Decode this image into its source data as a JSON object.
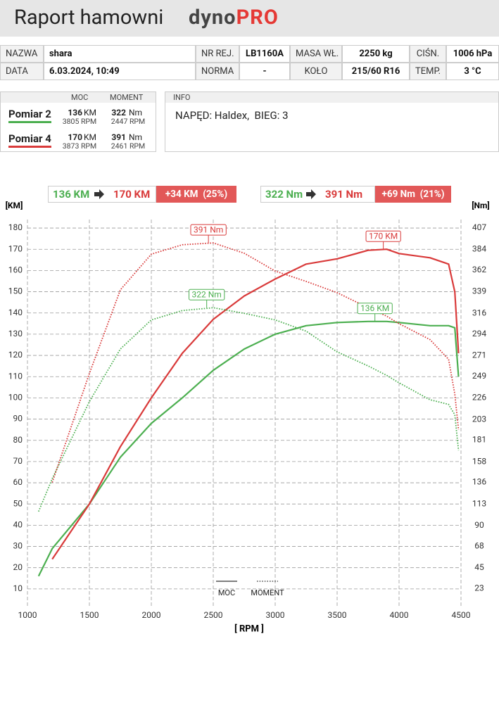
{
  "header": {
    "title": "Raport hamowni",
    "logo_left": "dyno",
    "logo_right": "PRO"
  },
  "details": {
    "rows": [
      [
        "NAZWA",
        "shara",
        "NR REJ.",
        "LB1160A",
        "MASA WŁ.",
        "2250 kg",
        "CIŚN.",
        "1006 hPa"
      ],
      [
        "DATA",
        "6.03.2024, 10:49",
        "NORMA",
        "-",
        "KOŁO",
        "215/60 R16",
        "TEMP.",
        "3 °C"
      ]
    ]
  },
  "measurements": {
    "headers": [
      "MOC",
      "MOMENT"
    ],
    "rows": [
      {
        "name": "Pomiar 2",
        "color": "#4caf50",
        "power": "136",
        "power_unit": "KM",
        "power_rpm": "3805 RPM",
        "torque": "322",
        "torque_unit": "Nm",
        "torque_rpm": "2447 RPM"
      },
      {
        "name": "Pomiar 4",
        "color": "#d93a3a",
        "power": "170",
        "power_unit": "KM",
        "power_rpm": "3873 RPM",
        "torque": "391",
        "torque_unit": "Nm",
        "torque_rpm": "2461 RPM"
      }
    ]
  },
  "info": {
    "title": "INFO",
    "text": "NAPĘD: Haldex,  BIEG: 3"
  },
  "comparison": [
    {
      "from": "136 KM",
      "to": "170 KM",
      "diff": "+34 KM  (25%)"
    },
    {
      "from": "322 Nm",
      "to": "391 Nm",
      "diff": "+69 Nm  (21%)"
    }
  ],
  "chart_data": {
    "type": "line",
    "xlabel": "[ RPM ]",
    "ylabel": "[KM]",
    "y2label": "[Nm]",
    "grid": true,
    "x": [
      1090,
      1200,
      1500,
      1750,
      2000,
      2250,
      2500,
      2750,
      3000,
      3250,
      3500,
      3750,
      3900,
      4000,
      4250,
      4400,
      4450,
      4480
    ],
    "xlim": [
      1000,
      4500
    ],
    "xticks": [
      1000,
      1500,
      2000,
      2500,
      3000,
      3500,
      4000,
      4500
    ],
    "ylim": [
      2,
      184
    ],
    "yticks": [
      10,
      20,
      30,
      40,
      50,
      60,
      70,
      80,
      90,
      100,
      110,
      120,
      130,
      140,
      150,
      160,
      170,
      180
    ],
    "y2lim": [
      4.52,
      415.84
    ],
    "y2ticks": [
      23,
      45,
      68,
      90,
      113,
      136,
      158,
      181,
      203,
      226,
      249,
      271,
      294,
      316,
      339,
      362,
      384,
      407
    ],
    "series": [
      {
        "color": "#4caf50",
        "style": "solid",
        "axis": "y",
        "values": [
          16,
          29,
          50,
          72,
          88,
          100,
          113,
          123,
          130,
          134,
          135.5,
          136,
          136,
          135.5,
          134,
          134,
          133,
          110
        ]
      },
      {
        "color": "#d93a3a",
        "style": "solid",
        "axis": "y",
        "values": [
          null,
          24,
          50,
          77,
          100,
          121,
          137,
          148,
          156,
          163,
          165.5,
          169.5,
          170,
          168,
          166,
          163,
          150,
          121
        ]
      },
      {
        "color": "#4caf50",
        "style": "dotted",
        "axis": "y2",
        "values": [
          105,
          140,
          222,
          278,
          309,
          319,
          322,
          316,
          309,
          297,
          275,
          260,
          250,
          242,
          224,
          219,
          208,
          170
        ]
      },
      {
        "color": "#d93a3a",
        "style": "dotted",
        "axis": "y2",
        "values": [
          null,
          136,
          252,
          341,
          379,
          389,
          391,
          380,
          361,
          350,
          338,
          322,
          313,
          305,
          288,
          267,
          230,
          192
        ]
      }
    ],
    "legend": [
      {
        "label": "MOC",
        "style": "solid"
      },
      {
        "label": "MOMENT",
        "style": "dotted"
      }
    ],
    "annotations": [
      {
        "text": "391 Nm",
        "x": 2461,
        "y": 391,
        "axis": "y2",
        "color": "#d93a3a"
      },
      {
        "text": "170 KM",
        "x": 3873,
        "y": 170,
        "axis": "y",
        "color": "#d93a3a"
      },
      {
        "text": "322 Nm",
        "x": 2447,
        "y": 322,
        "axis": "y2",
        "color": "#4caf50"
      },
      {
        "text": "136 KM",
        "x": 3805,
        "y": 136,
        "axis": "y",
        "color": "#4caf50"
      }
    ]
  }
}
